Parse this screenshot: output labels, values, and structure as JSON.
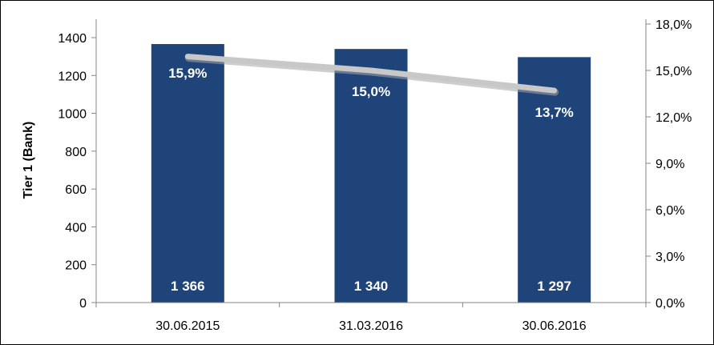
{
  "chart_data": {
    "type": "bar",
    "categories": [
      "30.06.2015",
      "31.03.2016",
      "30.06.2016"
    ],
    "series": [
      {
        "values": [
          1366,
          1340,
          1297
        ],
        "value_labels": [
          "1 366",
          "1 340",
          "1 297"
        ],
        "color": "#1f4479"
      },
      {
        "type": "line",
        "axis": "right",
        "values": [
          15.9,
          15.0,
          13.7
        ],
        "value_labels": [
          "15,9%",
          "15,0%",
          "13,7%"
        ],
        "color": "#c8c8c8"
      }
    ],
    "ylabel": "Tier 1 (Bank)",
    "ylim": [
      0,
      1400
    ],
    "y_ticks": [
      "0",
      "200",
      "400",
      "600",
      "800",
      "1000",
      "1200",
      "1400"
    ],
    "y2lim": [
      0,
      18
    ],
    "y2_ticks": [
      "0,0%",
      "3,0%",
      "6,0%",
      "9,0%",
      "12,0%",
      "15,0%",
      "18,0%"
    ],
    "grid": false
  }
}
